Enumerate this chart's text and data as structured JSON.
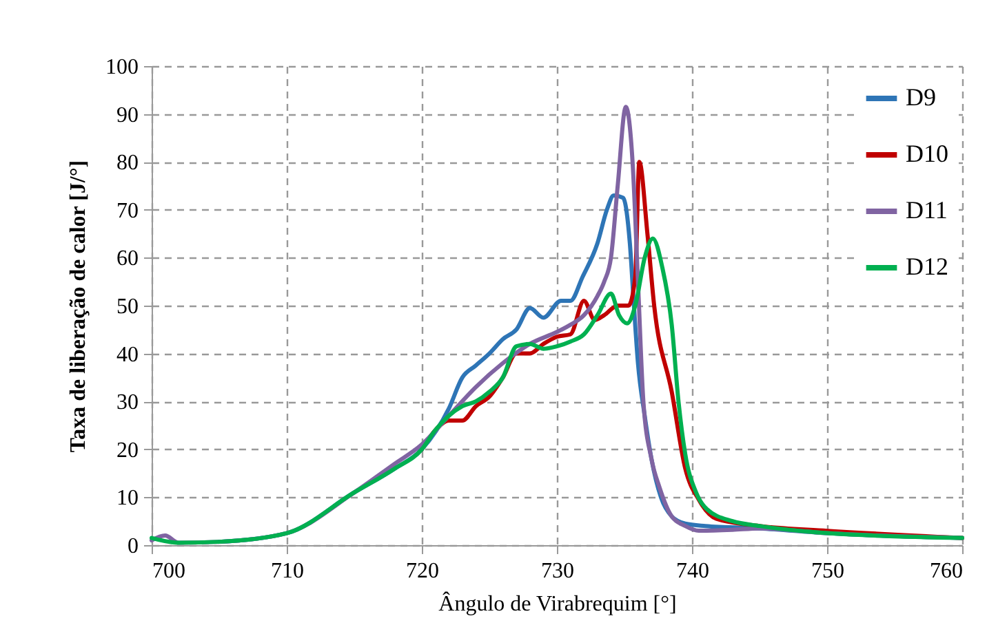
{
  "chart_data": {
    "type": "line",
    "xlabel": "Ângulo de Virabrequim [°]",
    "ylabel": "Taxa de liberação de calor [J/°]",
    "xlim": [
      700,
      760
    ],
    "xticks": [
      700,
      710,
      720,
      730,
      740,
      750,
      760
    ],
    "ylim": [
      0,
      100
    ],
    "yticks": [
      0,
      10,
      20,
      30,
      40,
      50,
      60,
      70,
      80,
      90,
      100
    ],
    "grid": true,
    "legend": "top right",
    "line_style": "solid",
    "marker": "none",
    "series": [
      {
        "name": "D9",
        "color": "#2e75b6",
        "x": [
          705,
          710,
          715,
          718,
          720,
          722,
          723,
          724,
          725,
          726,
          727,
          728,
          729,
          730.3,
          731,
          731.9,
          733,
          733.7,
          734.2,
          734.9,
          735.4,
          735.7,
          736,
          736.5,
          737,
          737.7,
          738.5,
          739.5,
          741,
          745,
          750,
          760
        ],
        "values": [
          0.7,
          2.5,
          11,
          16,
          20,
          28.5,
          35,
          37.5,
          40,
          43,
          45,
          49.5,
          47.5,
          51,
          51,
          56,
          63,
          70,
          73,
          72.5,
          63,
          50,
          38,
          27,
          18,
          10,
          6,
          4.5,
          4,
          3.5,
          2.5,
          1.5
        ]
      },
      {
        "name": "D10",
        "color": "#c00000",
        "x": [
          720,
          721,
          722,
          723,
          724,
          725,
          726,
          727,
          728,
          729,
          730,
          731,
          732,
          732.8,
          733.5,
          734.5,
          735.3,
          735.8,
          736.1,
          736.7,
          737.2,
          738.5,
          739.5,
          740.5,
          741.8,
          745,
          750,
          760
        ],
        "values": [
          20,
          24,
          26,
          26,
          29,
          31,
          35,
          40,
          40,
          42,
          43.5,
          44,
          51,
          47,
          48,
          50,
          50,
          56,
          80,
          65,
          50,
          32,
          16,
          9.5,
          5.5,
          4,
          3,
          1.5
        ]
      },
      {
        "name": "D11",
        "color": "#8064a2",
        "x": [
          700,
          701,
          702,
          705,
          710,
          715,
          718,
          720,
          722,
          724,
          726,
          728,
          730,
          731,
          732,
          733,
          733.5,
          734,
          734.5,
          735.1,
          735.6,
          736,
          736.4,
          737,
          737.6,
          738.5,
          739.5,
          740.5,
          743,
          745,
          750,
          760
        ],
        "values": [
          1,
          2,
          0.5,
          0.7,
          2.5,
          11,
          17,
          21,
          27,
          33,
          38,
          42,
          44.5,
          46,
          48,
          52,
          55,
          60,
          75,
          91.5,
          80,
          55,
          30,
          18,
          12,
          6,
          4,
          3,
          3.2,
          3.5,
          2.5,
          1.5
        ]
      },
      {
        "name": "D12",
        "color": "#00b050",
        "x": [
          700,
          702,
          705,
          710,
          715,
          718,
          720,
          721,
          722,
          723,
          724,
          725,
          726,
          727,
          728,
          729,
          730,
          731,
          732,
          733,
          734,
          734.6,
          735.2,
          735.8,
          736.5,
          737.1,
          737.8,
          738.5,
          739,
          739.5,
          740.3,
          741.1,
          743,
          745,
          750,
          760
        ],
        "values": [
          1.5,
          0.5,
          0.7,
          2.5,
          11,
          16,
          20,
          24,
          27,
          29,
          30,
          32,
          35,
          41.5,
          42,
          41,
          41.5,
          42.5,
          44,
          48,
          52.5,
          48,
          46.3,
          50,
          60,
          64,
          58,
          46,
          30,
          19,
          11,
          7.5,
          5,
          4,
          2.5,
          1.5
        ]
      }
    ]
  }
}
